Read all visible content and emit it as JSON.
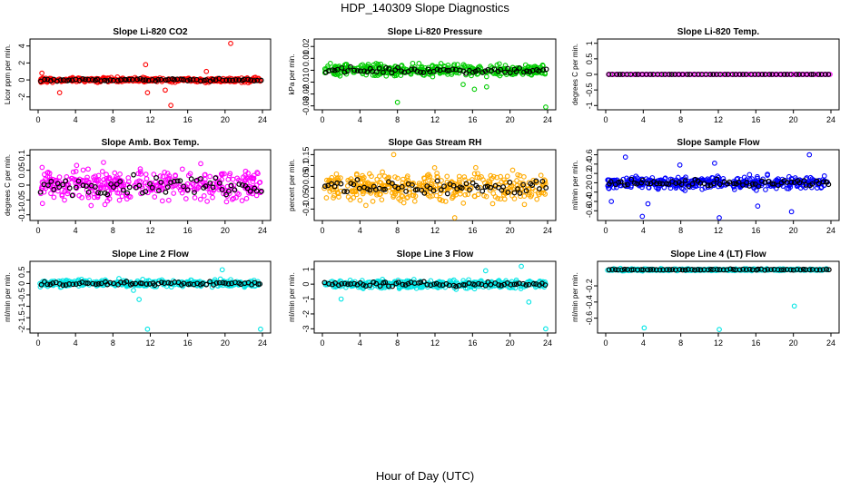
{
  "title": "HDP_140309  Slope Diagnostics",
  "xlabel": "Hour of Day (UTC)",
  "chart_data": [
    {
      "type": "scatter",
      "title": "Slope Li-820 CO2",
      "ylabel": "Licor ppm per min.",
      "xlim": [
        0,
        24
      ],
      "xticks": [
        0,
        4,
        8,
        12,
        16,
        20,
        24
      ],
      "ylim": [
        -3.2,
        4.5
      ],
      "yticks": [
        -2,
        0,
        2,
        4
      ],
      "color": "#ff0000",
      "spread": 0.45,
      "outliers": [
        [
          20.6,
          4.3
        ],
        [
          11.5,
          1.8
        ],
        [
          14.2,
          -3.0
        ],
        [
          11.7,
          -1.5
        ],
        [
          2.3,
          -1.5
        ],
        [
          13.6,
          -1.2
        ],
        [
          18.0,
          1.0
        ],
        [
          0.4,
          0.8
        ]
      ]
    },
    {
      "type": "scatter",
      "title": "Slope Li-820 Pressure",
      "ylabel": "kPa per min.",
      "xlim": [
        0,
        24
      ],
      "xticks": [
        0,
        4,
        8,
        12,
        16,
        20,
        24
      ],
      "ylim": [
        -0.031,
        0.024
      ],
      "yticks": [
        -0.03,
        -0.02,
        -0.01,
        0.0,
        0.01,
        0.02
      ],
      "color": "#00cc00",
      "spread": 0.008,
      "outliers": [
        [
          8.0,
          -0.027
        ],
        [
          23.8,
          -0.031
        ],
        [
          17.5,
          -0.014
        ],
        [
          15.0,
          -0.012
        ],
        [
          16.2,
          -0.016
        ]
      ]
    },
    {
      "type": "scatter",
      "title": "Slope Li-820 Temp.",
      "ylabel": "degrees C per min.",
      "xlim": [
        0,
        24
      ],
      "xticks": [
        0,
        4,
        8,
        12,
        16,
        20,
        24
      ],
      "ylim": [
        -1.05,
        1.05
      ],
      "yticks": [
        -1.0,
        -0.5,
        0.0,
        0.5,
        1.0
      ],
      "color": "#ff00ff",
      "spread": 0.0,
      "outliers": []
    },
    {
      "type": "scatter",
      "title": "Slope Amb. Box Temp.",
      "ylabel": "degrees C per min.",
      "xlim": [
        0,
        24
      ],
      "xticks": [
        0,
        4,
        8,
        12,
        16,
        20,
        24
      ],
      "ylim": [
        -0.11,
        0.11
      ],
      "yticks": [
        -0.1,
        -0.05,
        0.0,
        0.05,
        0.1
      ],
      "color": "#ff00ff",
      "spread": 0.09,
      "outliers": []
    },
    {
      "type": "scatter",
      "title": "Slope Gas Stream RH",
      "ylabel": "percent per min.",
      "xlim": [
        0,
        24
      ],
      "xticks": [
        0,
        4,
        8,
        12,
        16,
        20,
        24
      ],
      "ylim": [
        -0.14,
        0.16
      ],
      "yticks": [
        -0.1,
        -0.05,
        0.0,
        0.05,
        0.1,
        0.15
      ],
      "color": "#ffaa00",
      "spread": 0.11,
      "outliers": [
        [
          7.6,
          0.15
        ],
        [
          14.1,
          -0.14
        ]
      ]
    },
    {
      "type": "scatter",
      "title": "Slope Sample Flow",
      "ylabel": "ml/min per min.",
      "xlim": [
        0,
        24
      ],
      "xticks": [
        0,
        4,
        8,
        12,
        16,
        20,
        24
      ],
      "ylim": [
        -0.75,
        0.65
      ],
      "yticks": [
        -0.6,
        -0.4,
        -0.2,
        0.0,
        0.2,
        0.4,
        0.6
      ],
      "color": "#0000ff",
      "spread": 0.22,
      "outliers": [
        [
          3.9,
          -0.72
        ],
        [
          12.1,
          -0.75
        ],
        [
          21.7,
          0.6
        ],
        [
          2.1,
          0.55
        ],
        [
          16.2,
          -0.5
        ],
        [
          19.8,
          -0.62
        ],
        [
          11.6,
          0.42
        ],
        [
          4.5,
          -0.45
        ],
        [
          7.9,
          0.38
        ],
        [
          0.6,
          -0.4
        ]
      ]
    },
    {
      "type": "scatter",
      "title": "Slope Line 2 Flow",
      "ylabel": "ml/min per min.",
      "xlim": [
        0,
        24
      ],
      "xticks": [
        0,
        4,
        8,
        12,
        16,
        20,
        24
      ],
      "ylim": [
        -2.05,
        0.85
      ],
      "yticks": [
        -2.0,
        -1.5,
        -1.0,
        -0.5,
        0.0,
        0.5
      ],
      "color": "#00e5e5",
      "spread": 0.25,
      "outliers": [
        [
          11.7,
          -2.0
        ],
        [
          23.8,
          -2.0
        ],
        [
          10.8,
          -0.7
        ],
        [
          10.2,
          -0.3
        ],
        [
          19.7,
          0.6
        ]
      ]
    },
    {
      "type": "scatter",
      "title": "Slope Line 3 Flow",
      "ylabel": "ml/min per min.",
      "xlim": [
        0,
        24
      ],
      "xticks": [
        0,
        4,
        8,
        12,
        16,
        20,
        24
      ],
      "ylim": [
        -3.1,
        1.35
      ],
      "yticks": [
        -3,
        -2,
        -1,
        0,
        1
      ],
      "color": "#00e5e5",
      "spread": 0.45,
      "outliers": [
        [
          23.8,
          -3.0
        ],
        [
          21.2,
          1.2
        ],
        [
          2.0,
          -1.0
        ],
        [
          17.4,
          0.9
        ],
        [
          22.0,
          -1.2
        ]
      ]
    },
    {
      "type": "scatter",
      "title": "Slope Line 4 (LT) Flow",
      "ylabel": "ml/min per min.",
      "xlim": [
        0,
        24
      ],
      "xticks": [
        0,
        4,
        8,
        12,
        16,
        20,
        24
      ],
      "ylim": [
        -0.75,
        0.07
      ],
      "yticks": [
        -0.6,
        -0.4,
        -0.2
      ],
      "color": "#00e5e5",
      "spread": 0.02,
      "outliers": [
        [
          4.1,
          -0.72
        ],
        [
          12.1,
          -0.74
        ],
        [
          20.1,
          -0.45
        ]
      ]
    }
  ]
}
